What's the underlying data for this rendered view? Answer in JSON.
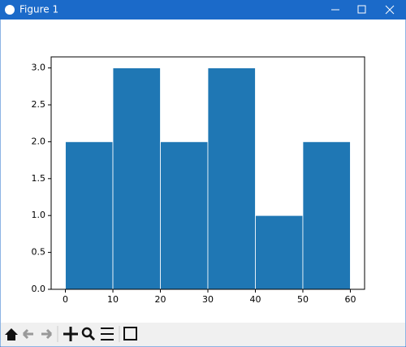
{
  "window": {
    "title": "Figure 1"
  },
  "chart_data": {
    "type": "histogram",
    "bins": [
      0,
      10,
      20,
      30,
      40,
      50,
      60
    ],
    "counts": [
      2,
      3,
      2,
      3,
      1,
      2
    ],
    "color": "#1f77b4",
    "xlim": [
      -3,
      63
    ],
    "xticks": [
      0,
      10,
      20,
      30,
      40,
      50,
      60
    ],
    "ylim": [
      0,
      3.15
    ],
    "yticks": [
      {
        "value": 0,
        "label": "0.0"
      },
      {
        "value": 0.5,
        "label": "0.5"
      },
      {
        "value": 1,
        "label": "1.0"
      },
      {
        "value": 1.5,
        "label": "1.5"
      },
      {
        "value": 2,
        "label": "2.0"
      },
      {
        "value": 2.5,
        "label": "2.5"
      },
      {
        "value": 3,
        "label": "3.0"
      }
    ],
    "grid": false
  }
}
